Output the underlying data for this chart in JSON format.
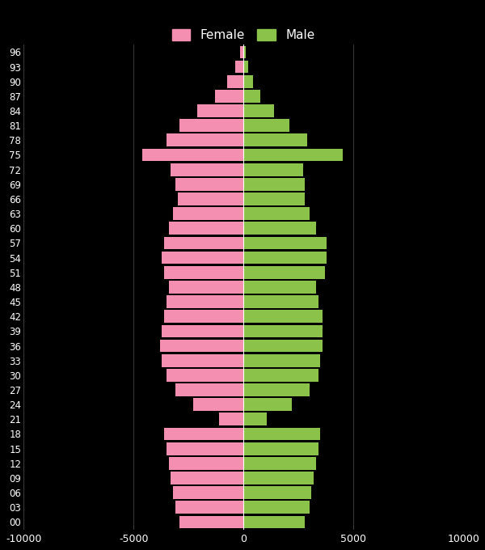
{
  "ages": [
    0,
    3,
    6,
    9,
    12,
    15,
    18,
    21,
    24,
    27,
    30,
    33,
    36,
    39,
    42,
    45,
    48,
    51,
    54,
    57,
    60,
    63,
    66,
    69,
    72,
    75,
    78,
    81,
    84,
    87,
    90,
    93,
    96
  ],
  "female": [
    2900,
    3100,
    3200,
    3300,
    3400,
    3500,
    3600,
    1100,
    2300,
    3100,
    3500,
    3700,
    3800,
    3700,
    3600,
    3500,
    3400,
    3600,
    3700,
    3600,
    3400,
    3200,
    3000,
    3100,
    3300,
    4600,
    3500,
    2900,
    2100,
    1300,
    750,
    380,
    160
  ],
  "male": [
    2800,
    3000,
    3100,
    3200,
    3300,
    3400,
    3500,
    1050,
    2200,
    3000,
    3400,
    3500,
    3600,
    3600,
    3600,
    3400,
    3300,
    3700,
    3800,
    3800,
    3300,
    3000,
    2800,
    2800,
    2700,
    4500,
    2900,
    2100,
    1400,
    750,
    420,
    220,
    90
  ],
  "female_color": "#f48fb1",
  "male_color": "#8bc34a",
  "bg_color": "#000000",
  "text_color": "#ffffff",
  "grid_color": "#444444",
  "xlim": [
    -10000,
    10000
  ],
  "xticks": [
    -10000,
    -5000,
    0,
    5000,
    10000
  ],
  "xtick_labels": [
    "-10000",
    "-5000",
    "0",
    "5000",
    "10000"
  ],
  "legend_female": "Female",
  "legend_male": "Male"
}
